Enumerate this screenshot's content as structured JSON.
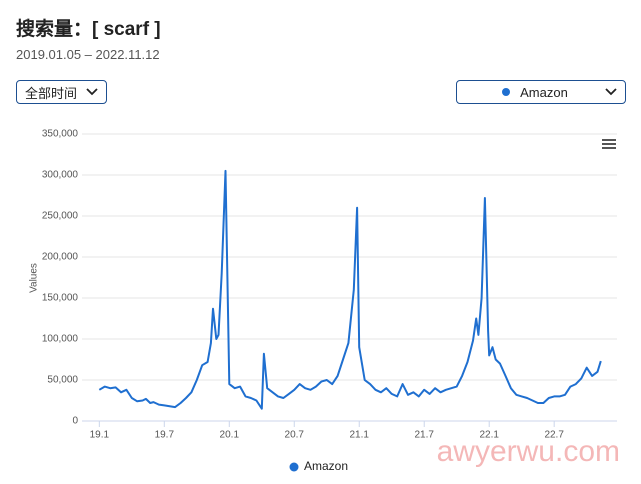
{
  "chart_data": {
    "type": "line",
    "title": "搜索量：[ scarf ]",
    "subtitle": "2019.01.05 – 2022.11.12",
    "y_label": "Values",
    "xlim": [
      -1.6,
      47.8
    ],
    "xticks": [
      {
        "value": 0,
        "label": "19.1"
      },
      {
        "value": 6,
        "label": "19.7"
      },
      {
        "value": 12,
        "label": "20.1"
      },
      {
        "value": 18,
        "label": "20.7"
      },
      {
        "value": 24,
        "label": "21.1"
      },
      {
        "value": 30,
        "label": "21.7"
      },
      {
        "value": 36,
        "label": "22.1"
      },
      {
        "value": 42,
        "label": "22.7"
      }
    ],
    "ylim": [
      0,
      350000
    ],
    "yticks": [
      0,
      {
        "value": 50000,
        "label": "50,000"
      },
      {
        "value": 100000,
        "label": "100,000"
      },
      {
        "value": 150000,
        "label": "150,000"
      },
      {
        "value": 200000,
        "label": "200,000"
      },
      {
        "value": 250000,
        "label": "250,000"
      },
      {
        "value": 300000,
        "label": "300,000"
      },
      {
        "value": 350000,
        "label": "350,000"
      }
    ],
    "grid": true,
    "legend": "bottom",
    "x": [
      0,
      0.5,
      1,
      1.5,
      2,
      2.5,
      3,
      3.5,
      4,
      4.3,
      4.7,
      5,
      5.5,
      6,
      6.5,
      7,
      7.5,
      8,
      8.5,
      9,
      9.5,
      10,
      10.3,
      10.5,
      10.8,
      11,
      11.3,
      11.65,
      12,
      12.5,
      13,
      13.5,
      14,
      14.5,
      15,
      15.2,
      15.5,
      16,
      16.5,
      17,
      17.5,
      18,
      18.5,
      19,
      19.5,
      20,
      20.5,
      21,
      21.5,
      22,
      22.5,
      23,
      23.5,
      23.8,
      24,
      24.5,
      25,
      25.5,
      26,
      26.5,
      27,
      27.5,
      28,
      28.5,
      29,
      29.5,
      30,
      30.5,
      31,
      31.5,
      32,
      32.5,
      33,
      33.5,
      34,
      34.5,
      34.8,
      35,
      35.3,
      35.6,
      35.9,
      36,
      36.3,
      36.6,
      37,
      37.5,
      38,
      38.5,
      39,
      39.5,
      40,
      40.5,
      41,
      41.5,
      42,
      42.5,
      43,
      43.5,
      44,
      44.5,
      45,
      45.5,
      46,
      46.3
    ],
    "series": [
      {
        "name": "Amazon",
        "color": "#1f6fd0",
        "values": [
          38000,
          42000,
          40000,
          41000,
          35000,
          38000,
          28000,
          24000,
          25000,
          27000,
          22000,
          23000,
          20000,
          19000,
          18000,
          17000,
          22000,
          28000,
          35000,
          50000,
          68000,
          72000,
          95000,
          137000,
          100000,
          105000,
          180000,
          305000,
          45000,
          40000,
          42000,
          30000,
          28000,
          25000,
          15000,
          82000,
          40000,
          35000,
          30000,
          28000,
          33000,
          38000,
          45000,
          40000,
          38000,
          42000,
          48000,
          50000,
          45000,
          55000,
          75000,
          95000,
          160000,
          260000,
          90000,
          50000,
          45000,
          38000,
          35000,
          40000,
          33000,
          30000,
          45000,
          32000,
          35000,
          30000,
          38000,
          33000,
          40000,
          35000,
          38000,
          40000,
          42000,
          55000,
          72000,
          98000,
          125000,
          105000,
          150000,
          272000,
          110000,
          80000,
          90000,
          75000,
          70000,
          55000,
          40000,
          32000,
          30000,
          28000,
          25000,
          22000,
          22000,
          28000,
          30000,
          30000,
          32000,
          42000,
          45000,
          52000,
          65000,
          55000,
          60000,
          73000
        ]
      }
    ]
  },
  "controls": {
    "time_range": "全部时间",
    "platform": "Amazon"
  },
  "watermark": "awyerwu.com"
}
